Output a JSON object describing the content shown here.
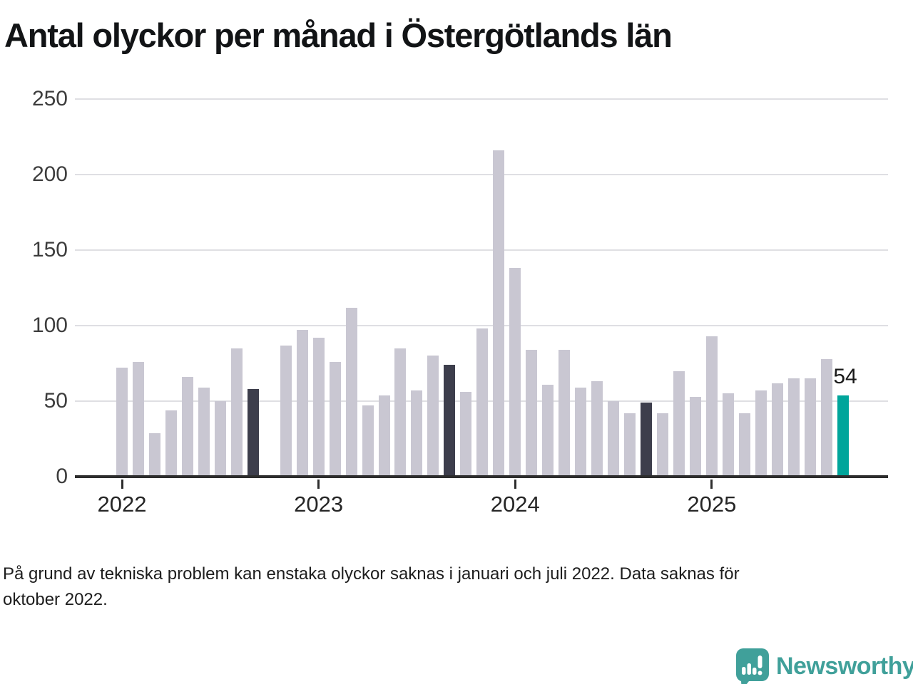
{
  "title": "Antal olyckor per månad i Östergötlands län",
  "footnote": {
    "line1": "På grund av tekniska problem kan enstaka olyckor saknas i januari och juli 2022. Data saknas för",
    "line2": "oktober 2022."
  },
  "logo": {
    "name": "Newsworthy"
  },
  "colors": {
    "bar_default": "#c9c7d2",
    "bar_dark": "#3d3e4c",
    "bar_current": "#00a59b",
    "gridline": "#dfdfe3",
    "axis_line": "#2d2d2d",
    "logo_teal": "#40a09a"
  },
  "chart_data": {
    "type": "bar",
    "title": "Antal olyckor per månad i Östergötlands län",
    "months": [
      "2022-01",
      "2022-02",
      "2022-03",
      "2022-04",
      "2022-05",
      "2022-06",
      "2022-07",
      "2022-08",
      "2022-09",
      "2022-10",
      "2022-11",
      "2022-12",
      "2023-01",
      "2023-02",
      "2023-03",
      "2023-04",
      "2023-05",
      "2023-06",
      "2023-07",
      "2023-08",
      "2023-09",
      "2023-10",
      "2023-11",
      "2023-12",
      "2024-01",
      "2024-02",
      "2024-03",
      "2024-04",
      "2024-05",
      "2024-06",
      "2024-07",
      "2024-08",
      "2024-09",
      "2024-10",
      "2024-11",
      "2024-12",
      "2025-01",
      "2025-02",
      "2025-03",
      "2025-04",
      "2025-05",
      "2025-06",
      "2025-07",
      "2025-08",
      "2025-09"
    ],
    "values": [
      72,
      76,
      29,
      44,
      66,
      59,
      50,
      85,
      58,
      null,
      87,
      97,
      92,
      76,
      112,
      47,
      54,
      85,
      57,
      80,
      74,
      56,
      98,
      216,
      138,
      84,
      61,
      84,
      59,
      63,
      50,
      42,
      49,
      42,
      70,
      53,
      93,
      55,
      42,
      57,
      62,
      65,
      65,
      78,
      54
    ],
    "missing_month_indices": [
      9
    ],
    "dark_month_indices": [
      8,
      20,
      32
    ],
    "current_month_index": 44,
    "data_label": "54",
    "ylim": [
      0,
      250
    ],
    "yticks": [
      0,
      50,
      100,
      150,
      200,
      250
    ],
    "year_tick_labels": [
      "2022",
      "2023",
      "2024",
      "2025"
    ],
    "year_tick_month_indices": [
      0,
      12,
      24,
      36
    ],
    "grid": true,
    "legend": null
  }
}
